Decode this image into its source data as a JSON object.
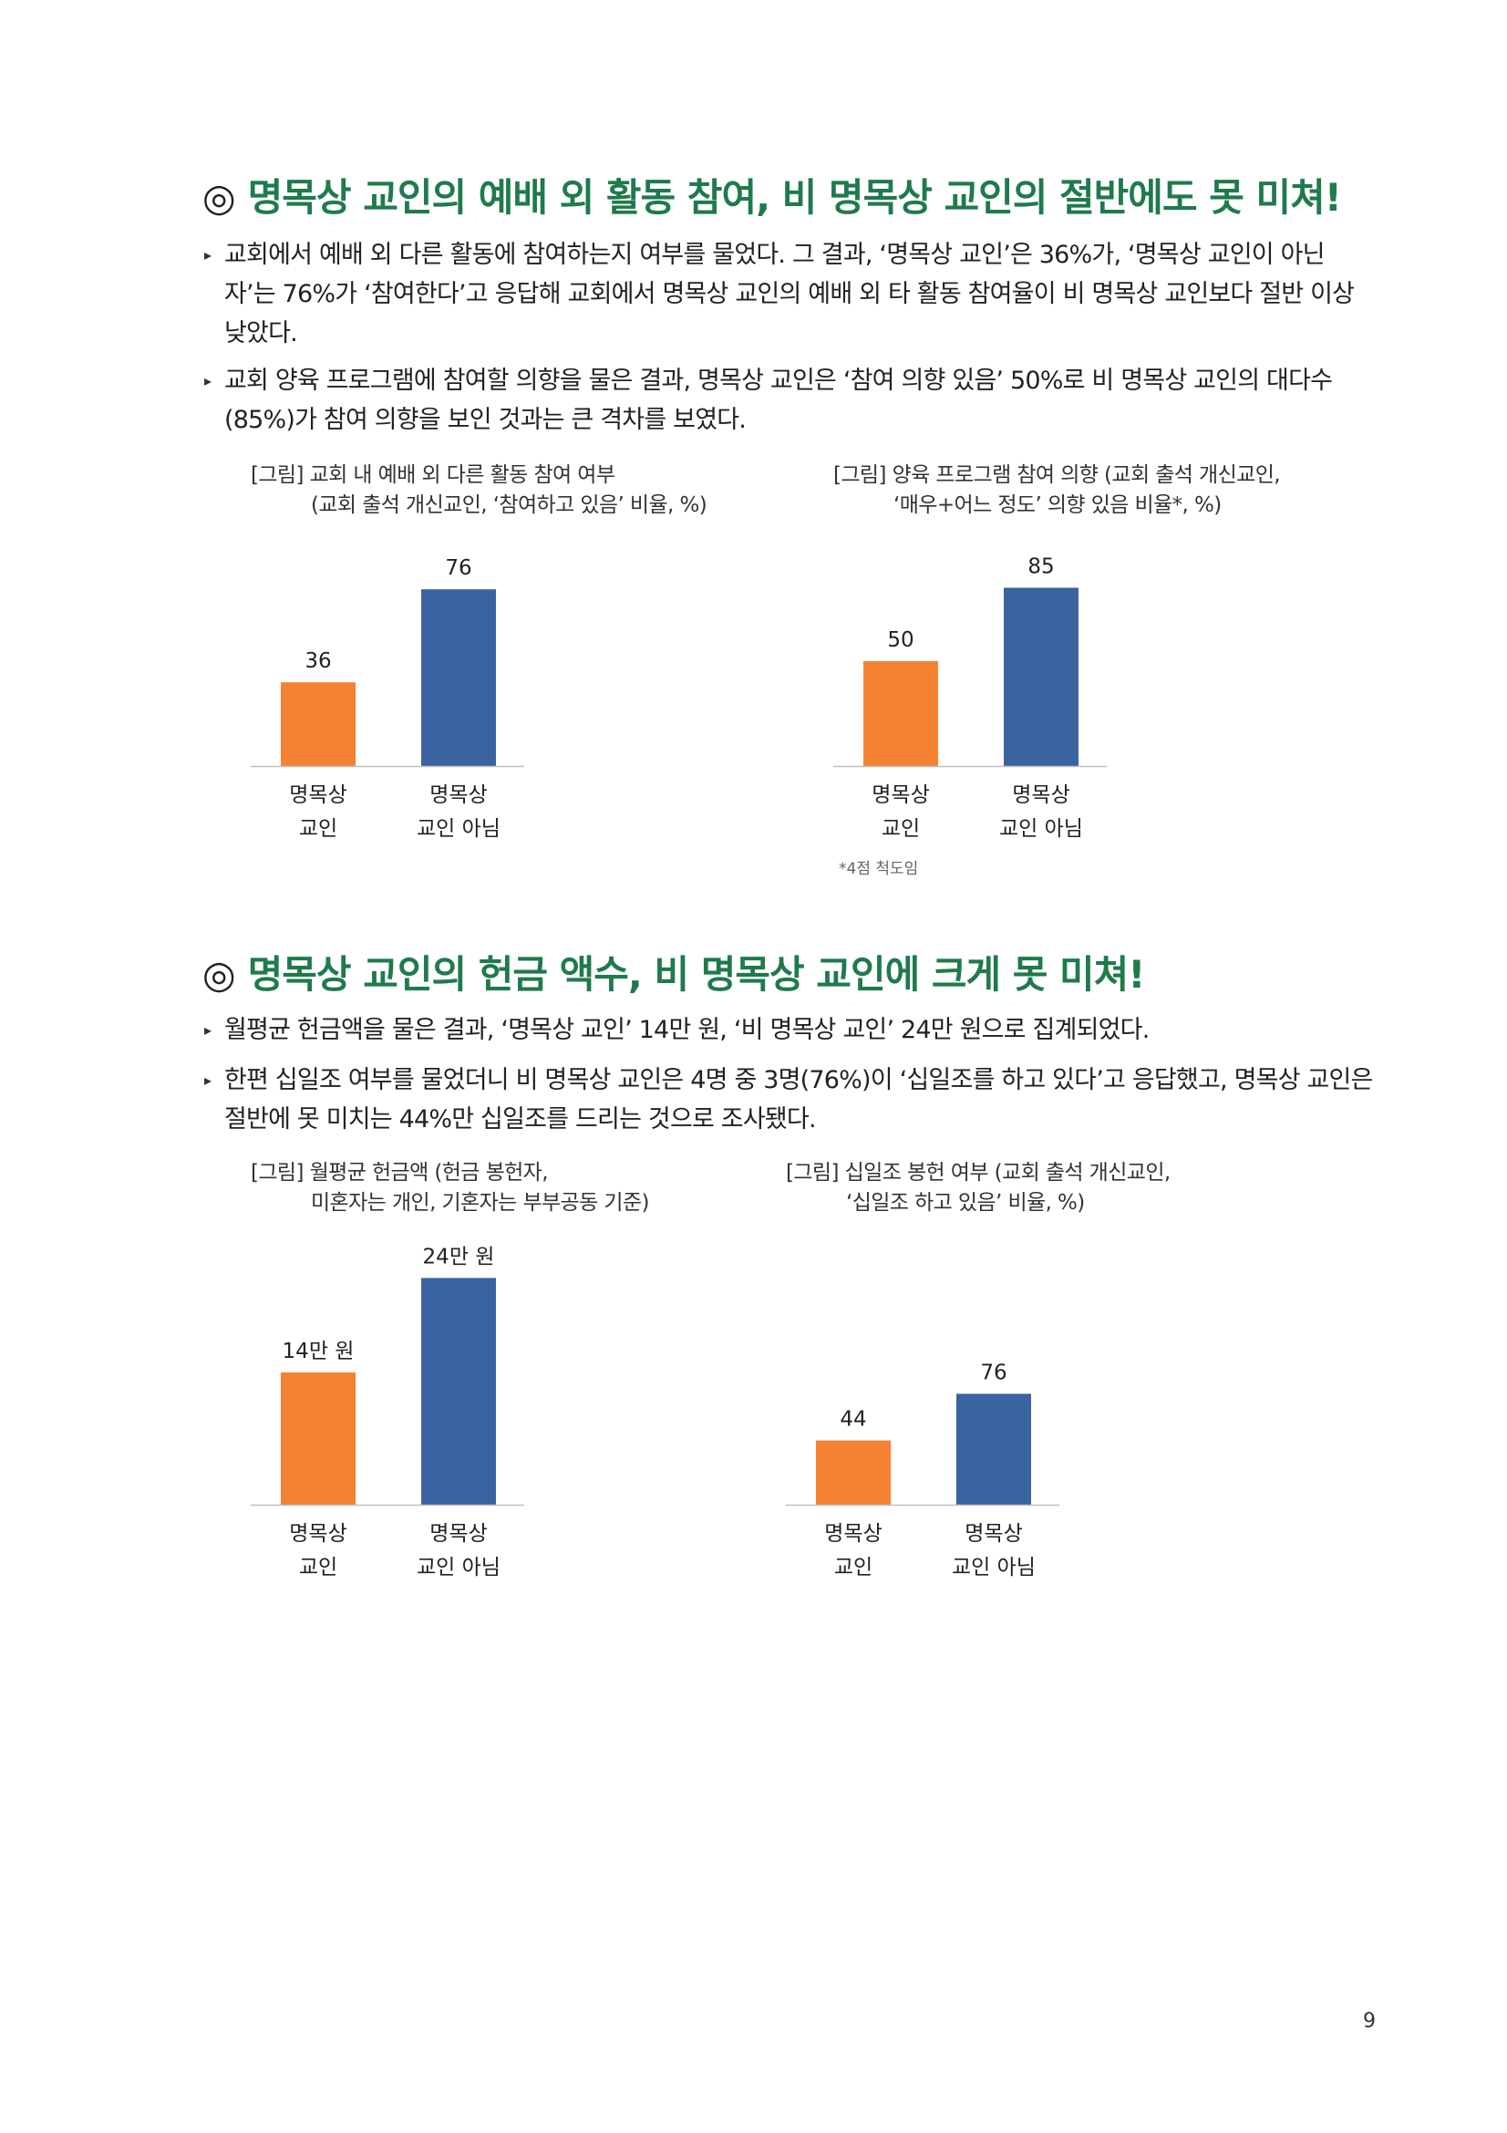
{
  "colors": {
    "heading": "#1f7a4c",
    "bar_orange": "#f58233",
    "bar_blue": "#3a64a0"
  },
  "section1": {
    "mark": "◎",
    "title": "명목상 교인의 예배 외 활동 참여, 비 명목상 교인의 절반에도 못 미쳐!",
    "bullets": [
      "교회에서 예배 외 다른 활동에 참여하는지 여부를 물었다. 그 결과, ‘명목상 교인’은 36%가, ‘명목상 교인이 아닌 자’는 76%가 ‘참여한다’고 응답해 교회에서 명목상 교인의 예배 외 타 활동 참여율이 비 명목상 교인보다 절반 이상 낮았다.",
      "교회 양육 프로그램에 참여할 의향을 물은 결과, 명목상 교인은 ‘참여 의향 있음’ 50%로 비 명목상 교인의 대다수(85%)가 참여 의향을 보인 것과는 큰 격차를 보였다."
    ]
  },
  "section2": {
    "mark": "◎",
    "title": "명목상 교인의 헌금 액수, 비 명목상 교인에 크게 못 미쳐!",
    "bullets": [
      "월평균 헌금액을 물은 결과, ‘명목상 교인’ 14만 원, ‘비 명목상 교인’ 24만 원으로 집계되었다.",
      "한편 십일조 여부를 물었더니 비 명목상 교인은 4명 중 3명(76%)이 ‘십일조를 하고 있다’고 응답했고, 명목상 교인은 절반에 못 미치는 44%만 십일조를 드리는 것으로 조사됐다."
    ]
  },
  "chart_data": [
    {
      "type": "bar",
      "caption_line1": "[그림] 교회 내 예배 외 다른 활동 참여 여부",
      "caption_line2": "(교회 출석 개신교인, ‘참여하고 있음’ 비율, %)",
      "categories": [
        [
          "명목상",
          "교인"
        ],
        [
          "명목상",
          "교인 아님"
        ]
      ],
      "values": [
        36,
        76
      ],
      "labels": [
        "36",
        "76"
      ],
      "ylim": [
        0,
        100
      ]
    },
    {
      "type": "bar",
      "caption_line1": "[그림] 양육 프로그램 참여 의향 (교회 출석 개신교인,",
      "caption_line2": "‘매우+어느 정도’ 의향 있음 비율*, %)",
      "categories": [
        [
          "명목상",
          "교인"
        ],
        [
          "명목상",
          "교인 아님"
        ]
      ],
      "values": [
        50,
        85
      ],
      "labels": [
        "50",
        "85"
      ],
      "ylim": [
        0,
        100
      ],
      "footnote": "*4점 척도임"
    },
    {
      "type": "bar",
      "caption_line1": "[그림] 월평균 헌금액 (헌금 봉헌자,",
      "caption_line2": "미혼자는 개인, 기혼자는 부부공동 기준)",
      "categories": [
        [
          "명목상",
          "교인"
        ],
        [
          "명목상",
          "교인 아님"
        ]
      ],
      "values": [
        14,
        24
      ],
      "labels": [
        "14만 원",
        "24만 원"
      ],
      "ylim": [
        0,
        28
      ]
    },
    {
      "type": "bar",
      "caption_line1": "[그림] 십일조 봉헌 여부 (교회 출석 개신교인,",
      "caption_line2": "‘십일조 하고 있음’ 비율, %)",
      "categories": [
        [
          "명목상",
          "교인"
        ],
        [
          "명목상",
          "교인 아님"
        ]
      ],
      "values": [
        44,
        76
      ],
      "labels": [
        "44",
        "76"
      ],
      "ylim": [
        0,
        100
      ]
    }
  ],
  "page_number": "9"
}
